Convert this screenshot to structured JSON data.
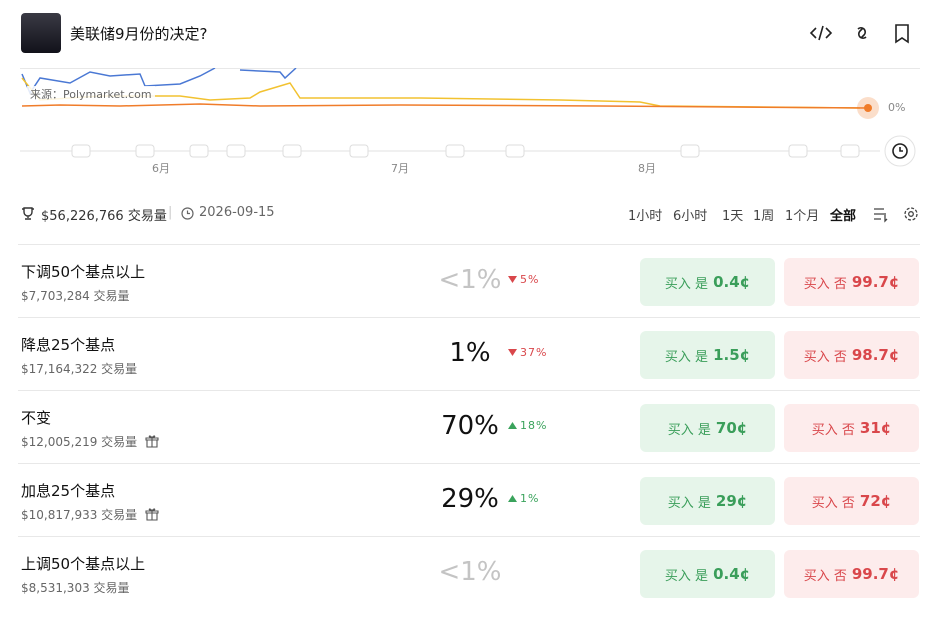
{
  "header": {
    "title": "美联储9月份的决定?"
  },
  "chart": {
    "source": "来源：Polymarket.com",
    "y_label": "0%",
    "months": [
      "6月",
      "7月",
      "8月"
    ]
  },
  "stats": {
    "volume": "$56,226,766 交易量",
    "date": "2026-09-15"
  },
  "ranges": [
    "1小时",
    "6小时",
    "1天",
    "1周",
    "1个月",
    "全部"
  ],
  "outcomes": [
    {
      "name": "下调50个基点以上",
      "volume": "$7,703,284 交易量",
      "probability": "<1%",
      "change": "5%",
      "change_direction": "down",
      "yes_label": "买入 是",
      "yes_price": "0.4¢",
      "no_label": "买入 否",
      "no_price": "99.7¢"
    },
    {
      "name": "降息25个基点",
      "volume": "$17,164,322 交易量",
      "probability": "1%",
      "change": "37%",
      "change_direction": "down",
      "yes_label": "买入 是",
      "yes_price": "1.5¢",
      "no_label": "买入 否",
      "no_price": "98.7¢"
    },
    {
      "name": "不变",
      "volume": "$12,005,219 交易量",
      "probability": "70%",
      "change": "18%",
      "change_direction": "up",
      "yes_label": "买入 是",
      "yes_price": "70¢",
      "no_label": "买入 否",
      "no_price": "31¢"
    },
    {
      "name": "加息25个基点",
      "volume": "$10,817,933 交易量",
      "probability": "29%",
      "change": "1%",
      "change_direction": "up",
      "yes_label": "买入 是",
      "yes_price": "29¢",
      "no_label": "买入 否",
      "no_price": "72¢"
    },
    {
      "name": "上调50个基点以上",
      "volume": "$8,531,303 交易量",
      "probability": "<1%",
      "change": null,
      "change_direction": null,
      "yes_label": "买入 是",
      "yes_price": "0.4¢",
      "no_label": "买入 否",
      "no_price": "99.7¢"
    }
  ]
}
